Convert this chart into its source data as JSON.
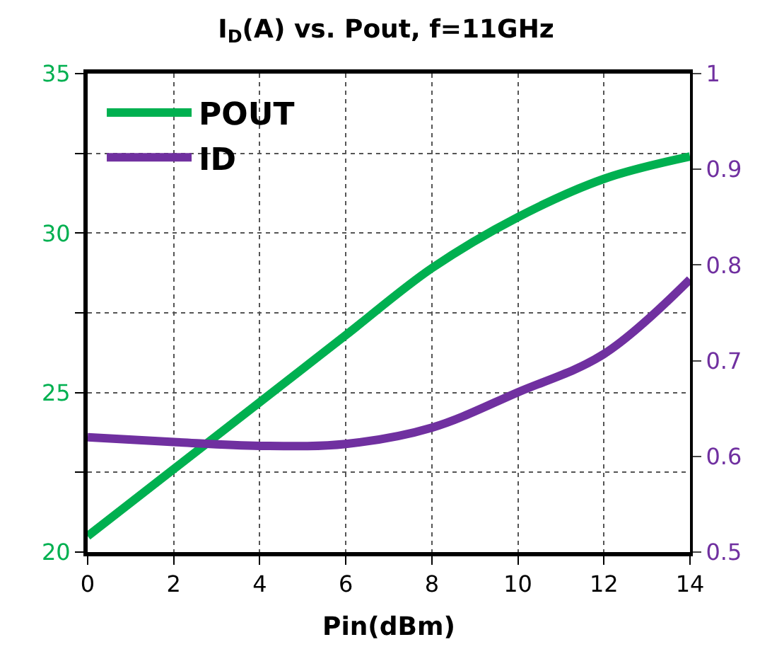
{
  "chart_data": {
    "type": "line",
    "title": "I$_{D}$(A) vs. Pout, f=11GHz",
    "xlabel": "Pin(dBm)",
    "x": [
      0,
      2,
      4,
      6,
      8,
      10,
      12,
      14
    ],
    "series": [
      {
        "name": "POUT",
        "color": "#00b050",
        "values": [
          20.5,
          22.6,
          24.7,
          26.8,
          28.9,
          30.5,
          31.7,
          32.4
        ]
      },
      {
        "name": "ID",
        "color": "#7030a0",
        "axis": "y2",
        "values": [
          0.62,
          0.615,
          0.611,
          0.613,
          0.63,
          0.667,
          0.707,
          0.785
        ]
      }
    ],
    "xlim": [
      0,
      14
    ],
    "xticks": [
      0,
      2,
      4,
      6,
      8,
      10,
      12,
      14
    ],
    "ylim": [
      20,
      35
    ],
    "yticks": [
      20,
      {
        "value": 22.5,
        "label": null
      },
      25,
      {
        "value": 27.5,
        "label": null
      },
      30,
      {
        "value": 32.5,
        "label": null
      },
      35
    ],
    "y2lim": [
      0.5,
      1
    ],
    "y2ticks": [
      0.5,
      0.6,
      0.7,
      0.8,
      0.9,
      1
    ],
    "grid": true,
    "legend": "top left",
    "marker": "none",
    "line_style": "solid"
  }
}
